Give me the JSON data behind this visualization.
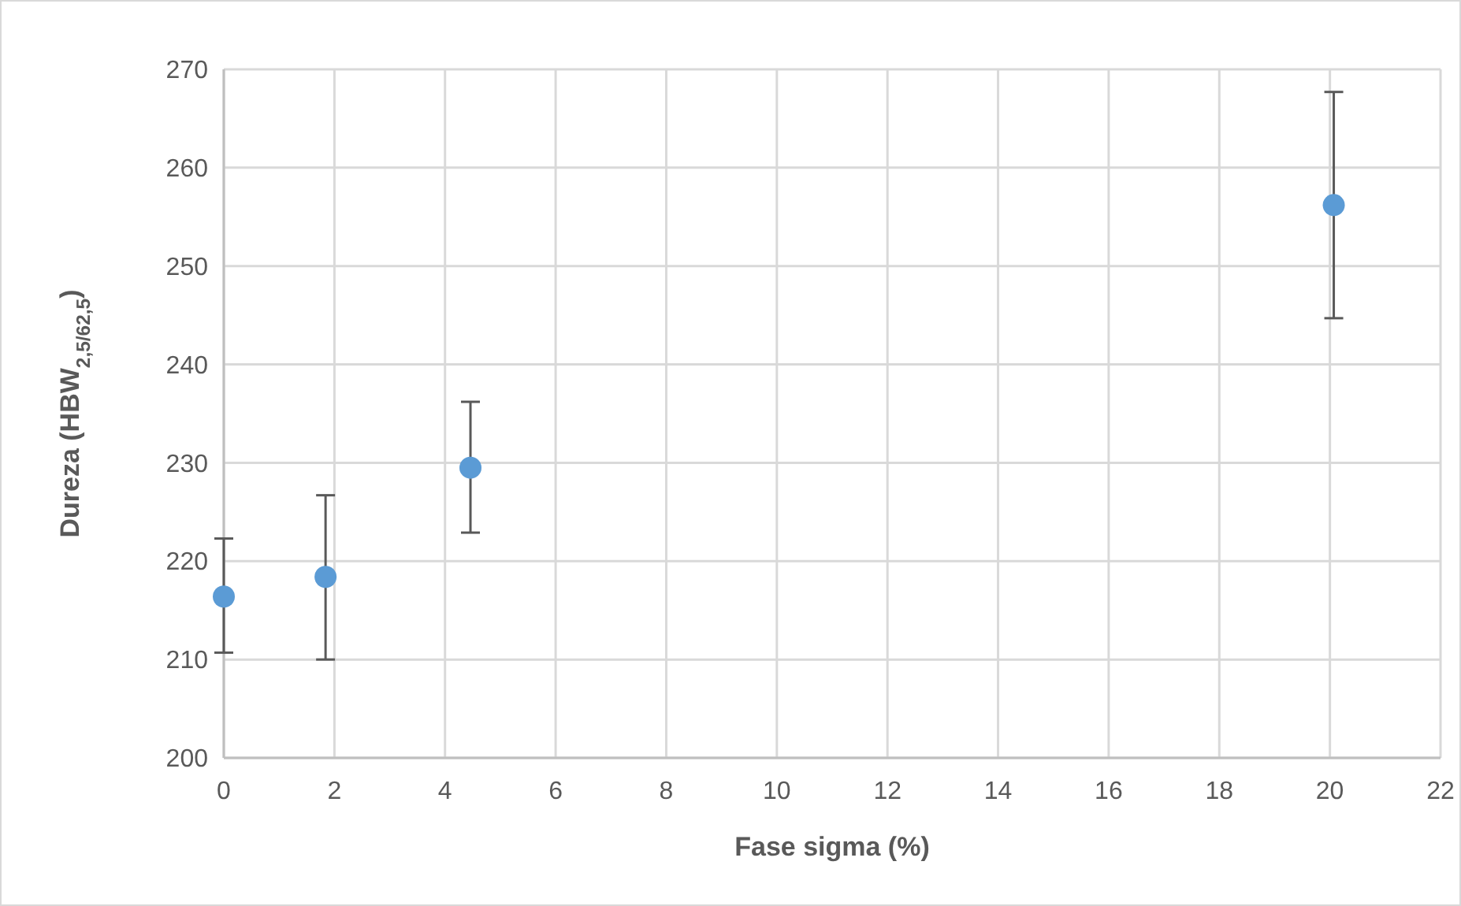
{
  "chart_data": {
    "type": "scatter",
    "xlabel": "Fase sigma (%)",
    "ylabel": "Dureza (HBW$_{2,5/62,5}$)",
    "x": [
      0,
      1.84,
      4.46,
      20.07
    ],
    "series": [
      {
        "color": "#5b9bd5",
        "values": [
          216.4,
          218.4,
          229.5,
          256.2
        ],
        "errors": [
          [
            210.7,
            222.3
          ],
          [
            210.0,
            226.7
          ],
          [
            222.9,
            236.2
          ],
          [
            244.7,
            267.7
          ]
        ]
      }
    ],
    "xlim": [
      0,
      22
    ],
    "xticks": [
      0,
      2,
      4,
      6,
      8,
      10,
      12,
      14,
      16,
      18,
      20,
      22
    ],
    "ylim": [
      200,
      270
    ],
    "yticks": [
      200,
      210,
      220,
      230,
      240,
      250,
      260,
      270
    ],
    "grid": true,
    "marker": "circle"
  }
}
